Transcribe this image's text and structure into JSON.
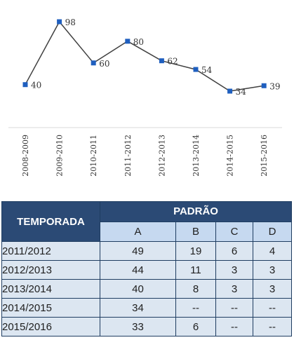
{
  "chart_data": {
    "type": "line",
    "categories": [
      "2008-2009",
      "2009-2010",
      "2010-2011",
      "2011-2012",
      "2012-2013",
      "2013-2014",
      "2014-2015",
      "2015-2016"
    ],
    "values": [
      40,
      98,
      60,
      80,
      62,
      54,
      34,
      39
    ],
    "data_labels": [
      "40",
      "98",
      "60",
      "80",
      "62",
      "54",
      "34",
      "39"
    ],
    "title": "",
    "xlabel": "",
    "ylabel": "",
    "ylim": [
      30,
      100
    ],
    "grid": false,
    "legend": "none",
    "line_color": "#404040",
    "marker_color": "#1f5fbf"
  },
  "table": {
    "header_temporada": "TEMPORADA",
    "header_padrao": "PADRÃO",
    "columns": [
      "A",
      "B",
      "C",
      "D"
    ],
    "rows": [
      {
        "season": "2011/2012",
        "cells": [
          "49",
          "19",
          "6",
          "4"
        ]
      },
      {
        "season": "2012/2013",
        "cells": [
          "44",
          "11",
          "3",
          "3"
        ]
      },
      {
        "season": "2013/2014",
        "cells": [
          "40",
          "8",
          "3",
          "3"
        ]
      },
      {
        "season": "2014/2015",
        "cells": [
          "34",
          "--",
          "--",
          "--"
        ]
      },
      {
        "season": "2015/2016",
        "cells": [
          "33",
          "6",
          "--",
          "--"
        ]
      }
    ],
    "header_color": "#2b4a75",
    "subheader_color": "#c6d9f0",
    "row_color": "#dce6f1"
  }
}
